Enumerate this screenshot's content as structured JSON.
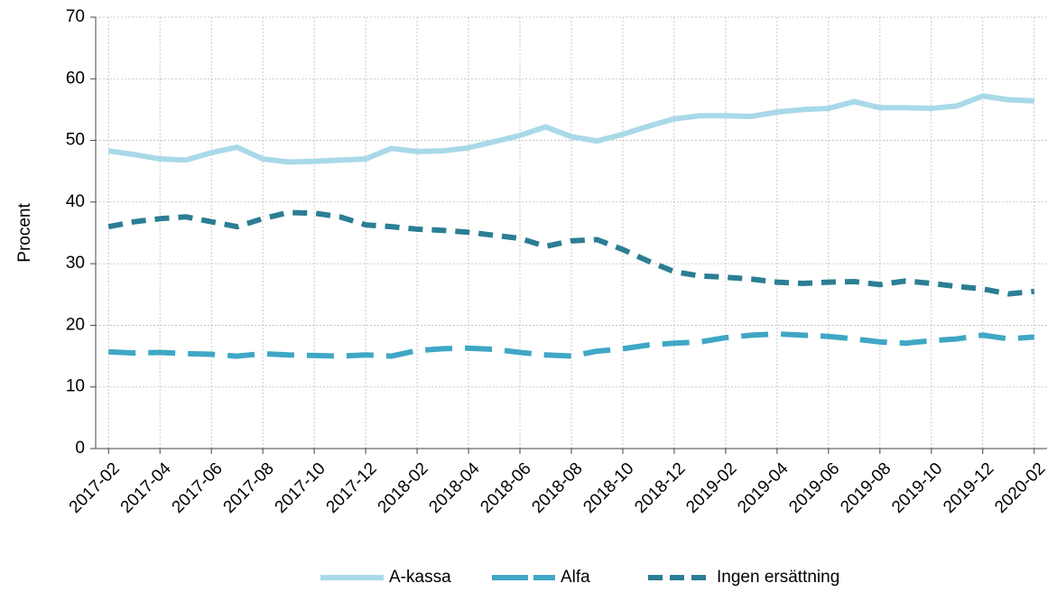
{
  "chart_data": {
    "type": "line",
    "ylabel": "Procent",
    "categories": [
      "2017-02",
      null,
      "2017-04",
      null,
      "2017-06",
      null,
      "2017-08",
      null,
      "2017-10",
      null,
      "2017-12",
      null,
      "2018-02",
      null,
      "2018-04",
      null,
      "2018-06",
      null,
      "2018-08",
      null,
      "2018-10",
      null,
      "2018-12",
      null,
      "2019-02",
      null,
      "2019-04",
      null,
      "2019-06",
      null,
      "2019-08",
      null,
      "2019-10",
      null,
      "2019-12",
      null,
      "2020-02"
    ],
    "series": [
      {
        "name": "A-kassa",
        "color": "#a9d9e8",
        "dash": "solid",
        "values": [
          48.3,
          47.7,
          47.0,
          46.8,
          48.0,
          48.9,
          47.0,
          46.5,
          46.6,
          46.8,
          47.0,
          48.7,
          48.2,
          48.3,
          48.8,
          49.8,
          50.8,
          52.2,
          50.6,
          49.9,
          51.0,
          52.3,
          53.5,
          54.0,
          54.0,
          53.9,
          54.6,
          55.0,
          55.2,
          56.3,
          55.3,
          55.3,
          55.2,
          55.6,
          57.2,
          56.6,
          56.4
        ]
      },
      {
        "name": "Alfa",
        "color": "#3fa7c5",
        "dash": "long",
        "values": [
          15.7,
          15.5,
          15.6,
          15.4,
          15.3,
          15.0,
          15.4,
          15.2,
          15.1,
          15.0,
          15.2,
          15.0,
          15.9,
          16.2,
          16.3,
          16.1,
          15.6,
          15.2,
          15.0,
          15.8,
          16.2,
          16.8,
          17.1,
          17.3,
          18.0,
          18.4,
          18.6,
          18.4,
          18.2,
          17.8,
          17.3,
          17.1,
          17.5,
          17.8,
          18.4,
          17.8,
          18.1
        ]
      },
      {
        "name": "Ingen ersättning",
        "color": "#2b7e94",
        "dash": "short",
        "values": [
          36.0,
          36.8,
          37.3,
          37.6,
          36.8,
          36.0,
          37.3,
          38.3,
          38.2,
          37.6,
          36.3,
          36.0,
          35.6,
          35.4,
          35.1,
          34.6,
          34.1,
          32.8,
          33.7,
          33.9,
          32.3,
          30.4,
          28.7,
          28.0,
          27.8,
          27.5,
          27.0,
          26.8,
          27.0,
          27.1,
          26.6,
          27.2,
          26.8,
          26.3,
          25.9,
          25.1,
          25.5
        ]
      }
    ],
    "ylim": [
      0,
      70
    ],
    "yticks": [
      0,
      10,
      20,
      30,
      40,
      50,
      60,
      70
    ],
    "grid": true,
    "legend": "bottom"
  }
}
